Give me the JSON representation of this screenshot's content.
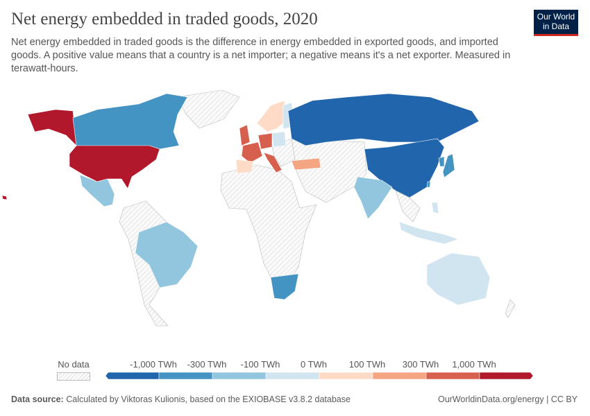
{
  "header": {
    "title": "Net energy embedded in traded goods, 2020",
    "subtitle": "Net energy embedded in traded goods is the difference in energy embedded in exported goods, and imported goods. A positive value means that a country is a net importer; a negative means it's a net exporter. Measured in terawatt-hours.",
    "logo": "Our World in Data"
  },
  "legend": {
    "no_data_label": "No data",
    "ticks": [
      "-1,000 TWh",
      "-300 TWh",
      "-100 TWh",
      "0 TWh",
      "100 TWh",
      "300 TWh",
      "1,000 TWh"
    ],
    "colors": [
      "#2166ac",
      "#4393c3",
      "#92c5de",
      "#d1e5f0",
      "#fddbc7",
      "#f4a582",
      "#d6604d",
      "#b2182b"
    ],
    "no_data_color": "#f2f2f2"
  },
  "map": {
    "country_bins": {
      "canada": 1,
      "alaska": 7,
      "usa": 7,
      "hawaii": 7,
      "mexico": 2,
      "brazil": 2,
      "south_africa": 1,
      "uk": 6,
      "france": 6,
      "germany": 6,
      "italy": 6,
      "spain": 4,
      "scandinavia": 4,
      "finland": 3,
      "poland": 3,
      "turkey": 5,
      "russia": 0,
      "china": 0,
      "india": 2,
      "japan": 1,
      "korea": 1,
      "indonesia": 3,
      "philippines": 3,
      "taiwan": 1,
      "australia": 3
    }
  },
  "footer": {
    "source_label": "Data source:",
    "source_text": "Calculated by Viktoras Kulionis, based on the EXIOBASE v3.8.2 database",
    "right": "OurWorldinData.org/energy | CC BY"
  }
}
